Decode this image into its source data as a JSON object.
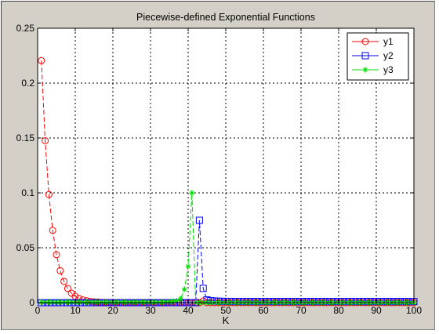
{
  "chart_data": {
    "type": "line",
    "title": "Piecewise-defined Exponential Functions",
    "xlabel": "K",
    "ylabel": "",
    "xlim": [
      0,
      100
    ],
    "ylim": [
      0,
      0.25
    ],
    "xticks": [
      "0",
      "10",
      "20",
      "30",
      "40",
      "50",
      "60",
      "70",
      "80",
      "90",
      "100"
    ],
    "yticks": [
      "0",
      "0.05",
      "0.1",
      "0.15",
      "0.2",
      "0.25"
    ],
    "grid": true,
    "legend": "top-right",
    "colors": {
      "background": "#d4d0c8",
      "plot": "#ffffff",
      "y1": "#ff0000",
      "y2": "#0000ff",
      "y3": "#00dd00"
    },
    "series": [
      {
        "name": "y1",
        "marker": "circle",
        "line": "dashed",
        "color": "#ff0000",
        "x": [
          1,
          2,
          3,
          4,
          5,
          6,
          7,
          8,
          9,
          10,
          11,
          12,
          13,
          14,
          15,
          16,
          17,
          18,
          19,
          20,
          21,
          22,
          23,
          24,
          25,
          26,
          27,
          28,
          29,
          30,
          31,
          32,
          33,
          34,
          35,
          36,
          37,
          38,
          39,
          40,
          41,
          42,
          43,
          44,
          45,
          46,
          47,
          48,
          49,
          50,
          51,
          52,
          53,
          54,
          55,
          56,
          57,
          58,
          59,
          60,
          61,
          62,
          63,
          64,
          65,
          66,
          67,
          68,
          69,
          70,
          71,
          72,
          73,
          74,
          75,
          76,
          77,
          78,
          79,
          80,
          81,
          82,
          83,
          84,
          85,
          86,
          87,
          88,
          89,
          90,
          91,
          92,
          93,
          94,
          95,
          96,
          97,
          98,
          99,
          100
        ],
        "y": [
          0.2205,
          0.1475,
          0.0985,
          0.0658,
          0.0437,
          0.0291,
          0.0194,
          0.0129,
          0.0086,
          0.0057,
          0.0038,
          0.0025,
          0.0017,
          0.0011,
          0.0007,
          0.0005,
          0.0003,
          0.0002,
          0.0001,
          0.0001,
          0,
          0,
          0,
          0,
          0,
          0,
          0,
          0,
          0,
          0,
          0,
          0,
          0,
          0,
          0,
          0,
          0,
          0,
          0,
          0,
          0,
          0,
          0,
          0.0015,
          0,
          0,
          0,
          0,
          0,
          0,
          0,
          0,
          0,
          0,
          0,
          0,
          0,
          0,
          0,
          0,
          0,
          0,
          0,
          0,
          0,
          0,
          0,
          0,
          0,
          0,
          0,
          0,
          0,
          0,
          0,
          0,
          0,
          0,
          0,
          0,
          0,
          0,
          0,
          0,
          0,
          0,
          0,
          0,
          0,
          0,
          0,
          0,
          0,
          0,
          0,
          0,
          0,
          0,
          0,
          0
        ]
      },
      {
        "name": "y2",
        "marker": "square",
        "line": "dashed",
        "color": "#0000ff",
        "x": [
          1,
          2,
          3,
          4,
          5,
          6,
          7,
          8,
          9,
          10,
          11,
          12,
          13,
          14,
          15,
          16,
          17,
          18,
          19,
          20,
          21,
          22,
          23,
          24,
          25,
          26,
          27,
          28,
          29,
          30,
          31,
          32,
          33,
          34,
          35,
          36,
          37,
          38,
          39,
          40,
          41,
          42,
          43,
          44,
          45,
          46,
          47,
          48,
          49,
          50,
          51,
          52,
          53,
          54,
          55,
          56,
          57,
          58,
          59,
          60,
          61,
          62,
          63,
          64,
          65,
          66,
          67,
          68,
          69,
          70,
          71,
          72,
          73,
          74,
          75,
          76,
          77,
          78,
          79,
          80,
          81,
          82,
          83,
          84,
          85,
          86,
          87,
          88,
          89,
          90,
          91,
          92,
          93,
          94,
          95,
          96,
          97,
          98,
          99,
          100
        ],
        "y": [
          0,
          0,
          0,
          0,
          0,
          0,
          0,
          0,
          0,
          0,
          0,
          0,
          0,
          0,
          0,
          0,
          0,
          0,
          0,
          0,
          0,
          0,
          0,
          0,
          0,
          0,
          0,
          0,
          0,
          0,
          0,
          0,
          0,
          0,
          0,
          0,
          0,
          0,
          0,
          0,
          0,
          0,
          0.075,
          0.013,
          0.0025,
          0.0018,
          0.0015,
          0.0013,
          0.0012,
          0.0011,
          0.0011,
          0.001,
          0.001,
          0.001,
          0.001,
          0.001,
          0.001,
          0.001,
          0.001,
          0.001,
          0.001,
          0.001,
          0.001,
          0.001,
          0.001,
          0.001,
          0.001,
          0.001,
          0.001,
          0.001,
          0.001,
          0.001,
          0.001,
          0.001,
          0.001,
          0.001,
          0.001,
          0.001,
          0.001,
          0.001,
          0.001,
          0.001,
          0.001,
          0.001,
          0.001,
          0.001,
          0.001,
          0.001,
          0.001,
          0.001,
          0.001,
          0.001,
          0.001,
          0.001,
          0.001,
          0.001,
          0.001,
          0.001,
          0.001,
          0.001
        ]
      },
      {
        "name": "y3",
        "marker": "asterisk",
        "line": "dashed",
        "color": "#00dd00",
        "x": [
          1,
          2,
          3,
          4,
          5,
          6,
          7,
          8,
          9,
          10,
          11,
          12,
          13,
          14,
          15,
          16,
          17,
          18,
          19,
          20,
          21,
          22,
          23,
          24,
          25,
          26,
          27,
          28,
          29,
          30,
          31,
          32,
          33,
          34,
          35,
          36,
          37,
          38,
          39,
          40,
          41,
          42,
          43,
          44,
          45,
          46,
          47,
          48,
          49,
          50,
          51,
          52,
          53,
          54,
          55,
          56,
          57,
          58,
          59,
          60,
          61,
          62,
          63,
          64,
          65,
          66,
          67,
          68,
          69,
          70,
          71,
          72,
          73,
          74,
          75,
          76,
          77,
          78,
          79,
          80,
          81,
          82,
          83,
          84,
          85,
          86,
          87,
          88,
          89,
          90,
          91,
          92,
          93,
          94,
          95,
          96,
          97,
          98,
          99,
          100
        ],
        "y": [
          0.0005,
          0.0005,
          0.0005,
          0.0005,
          0.0005,
          0.0005,
          0.0005,
          0.0005,
          0.0005,
          0.0005,
          0.0005,
          0.0005,
          0.0005,
          0.0005,
          0.0005,
          0.0005,
          0.0005,
          0.0005,
          0.0005,
          0.0005,
          0.0005,
          0.0005,
          0.0005,
          0.0005,
          0.0005,
          0.0005,
          0.0005,
          0.0005,
          0.0005,
          0.0005,
          0.0005,
          0.0005,
          0.0005,
          0.0006,
          0.0008,
          0.0012,
          0.0018,
          0.0035,
          0.012,
          0.033,
          0.1,
          0,
          0,
          0,
          0,
          0,
          0,
          0,
          0,
          0,
          0,
          0,
          0,
          0,
          0,
          0,
          0,
          0,
          0,
          0,
          0,
          0,
          0,
          0,
          0,
          0,
          0,
          0,
          0,
          0,
          0,
          0,
          0,
          0,
          0,
          0,
          0,
          0,
          0,
          0,
          0,
          0,
          0,
          0,
          0,
          0,
          0,
          0,
          0,
          0,
          0,
          0,
          0,
          0,
          0,
          0,
          0,
          0,
          0,
          0
        ]
      }
    ]
  }
}
